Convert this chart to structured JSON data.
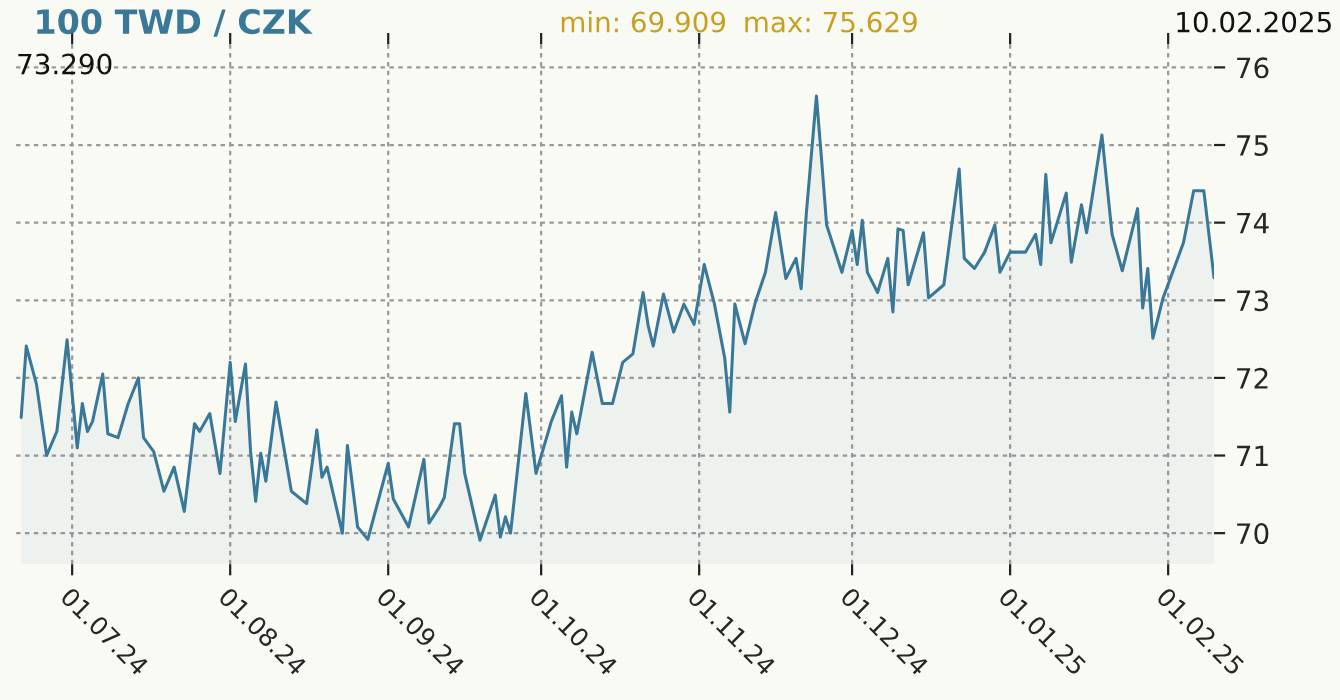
{
  "chart_data": {
    "type": "area",
    "title": "100 TWD / CZK",
    "annotations": [
      "min: 69.909",
      "max: 75.629",
      "10.02.2025",
      "73.290"
    ],
    "x": [
      "2024-06-21",
      "2024-06-22",
      "2024-06-24",
      "2024-06-26",
      "2024-06-28",
      "2024-06-30",
      "2024-07-02",
      "2024-07-03",
      "2024-07-04",
      "2024-07-05",
      "2024-07-07",
      "2024-07-08",
      "2024-07-10",
      "2024-07-12",
      "2024-07-14",
      "2024-07-15",
      "2024-07-17",
      "2024-07-19",
      "2024-07-21",
      "2024-07-23",
      "2024-07-25",
      "2024-07-26",
      "2024-07-28",
      "2024-07-30",
      "2024-08-01",
      "2024-08-02",
      "2024-08-04",
      "2024-08-05",
      "2024-08-06",
      "2024-08-07",
      "2024-08-08",
      "2024-08-10",
      "2024-08-13",
      "2024-08-16",
      "2024-08-18",
      "2024-08-19",
      "2024-08-20",
      "2024-08-23",
      "2024-08-24",
      "2024-08-26",
      "2024-08-28",
      "2024-09-01",
      "2024-09-02",
      "2024-09-05",
      "2024-09-08",
      "2024-09-09",
      "2024-09-11",
      "2024-09-12",
      "2024-09-14",
      "2024-09-15",
      "2024-09-16",
      "2024-09-19",
      "2024-09-22",
      "2024-09-23",
      "2024-09-24",
      "2024-09-25",
      "2024-09-28",
      "2024-09-30",
      "2024-10-03",
      "2024-10-05",
      "2024-10-06",
      "2024-10-07",
      "2024-10-08",
      "2024-10-11",
      "2024-10-13",
      "2024-10-15",
      "2024-10-17",
      "2024-10-19",
      "2024-10-21",
      "2024-10-22",
      "2024-10-23",
      "2024-10-25",
      "2024-10-27",
      "2024-10-29",
      "2024-10-31",
      "2024-11-02",
      "2024-11-04",
      "2024-11-06",
      "2024-11-07",
      "2024-11-08",
      "2024-11-10",
      "2024-11-12",
      "2024-11-14",
      "2024-11-16",
      "2024-11-18",
      "2024-11-20",
      "2024-11-21",
      "2024-11-22",
      "2024-11-24",
      "2024-11-25",
      "2024-11-26",
      "2024-11-29",
      "2024-12-01",
      "2024-12-02",
      "2024-12-03",
      "2024-12-04",
      "2024-12-06",
      "2024-12-08",
      "2024-12-09",
      "2024-12-10",
      "2024-12-11",
      "2024-12-12",
      "2024-12-15",
      "2024-12-16",
      "2024-12-19",
      "2024-12-22",
      "2024-12-23",
      "2024-12-25",
      "2024-12-27",
      "2024-12-29",
      "2024-12-30",
      "2025-01-01",
      "2025-01-04",
      "2025-01-06",
      "2025-01-07",
      "2025-01-08",
      "2025-01-09",
      "2025-01-12",
      "2025-01-13",
      "2025-01-15",
      "2025-01-16",
      "2025-01-19",
      "2025-01-21",
      "2025-01-23",
      "2025-01-26",
      "2025-01-27",
      "2025-01-28",
      "2025-01-29",
      "2025-01-31",
      "2025-02-04",
      "2025-02-06",
      "2025-02-08",
      "2025-02-10"
    ],
    "series": [
      {
        "color": "#3a7898",
        "values": [
          71.49,
          72.41,
          71.92,
          71.0,
          71.31,
          72.49,
          71.1,
          71.67,
          71.31,
          71.44,
          72.05,
          71.28,
          71.23,
          71.67,
          72.0,
          71.23,
          71.05,
          70.54,
          70.85,
          70.28,
          71.41,
          71.31,
          71.54,
          70.77,
          72.2,
          71.44,
          72.18,
          71.05,
          70.41,
          71.03,
          70.67,
          71.69,
          70.54,
          70.38,
          71.33,
          70.72,
          70.85,
          70.0,
          71.13,
          70.08,
          69.92,
          70.9,
          70.44,
          70.08,
          70.95,
          70.13,
          70.33,
          70.46,
          71.41,
          71.41,
          70.77,
          69.91,
          70.49,
          69.95,
          70.21,
          70.0,
          71.8,
          70.77,
          71.44,
          71.77,
          70.85,
          71.56,
          71.28,
          72.33,
          71.67,
          71.67,
          72.2,
          72.31,
          73.1,
          72.67,
          72.41,
          73.08,
          72.59,
          72.95,
          72.69,
          73.46,
          72.95,
          72.26,
          71.56,
          72.95,
          72.44,
          72.97,
          73.36,
          74.13,
          73.28,
          73.54,
          73.15,
          74.1,
          75.63,
          74.82,
          73.97,
          73.36,
          73.9,
          73.46,
          74.03,
          73.36,
          73.1,
          73.54,
          72.85,
          73.92,
          73.9,
          73.2,
          73.87,
          73.03,
          73.2,
          74.69,
          73.54,
          73.41,
          73.62,
          73.97,
          73.36,
          73.62,
          73.62,
          73.85,
          73.46,
          74.62,
          73.74,
          74.38,
          73.49,
          74.23,
          73.87,
          75.13,
          73.85,
          73.38,
          74.18,
          72.9,
          73.41,
          72.51,
          73.03,
          73.74,
          74.41,
          74.41,
          73.29
        ]
      }
    ],
    "xlim": [
      "2024-06-20",
      "2025-02-10"
    ],
    "xticks": [
      {
        "value": "2024-07-01",
        "label": "01.07.24"
      },
      {
        "value": "2024-08-01",
        "label": "01.08.24"
      },
      {
        "value": "2024-09-01",
        "label": "01.09.24"
      },
      {
        "value": "2024-10-01",
        "label": "01.10.24"
      },
      {
        "value": "2024-11-01",
        "label": "01.11.24"
      },
      {
        "value": "2024-12-01",
        "label": "01.12.24"
      },
      {
        "value": "2025-01-01",
        "label": "01.01.25"
      },
      {
        "value": "2025-02-01",
        "label": "01.02.25"
      }
    ],
    "ylim": [
      69.6,
      76.3
    ],
    "yticks": [
      70,
      71,
      72,
      73,
      74,
      75,
      76
    ],
    "grid": true,
    "line_style": "solid",
    "marker": "none"
  }
}
